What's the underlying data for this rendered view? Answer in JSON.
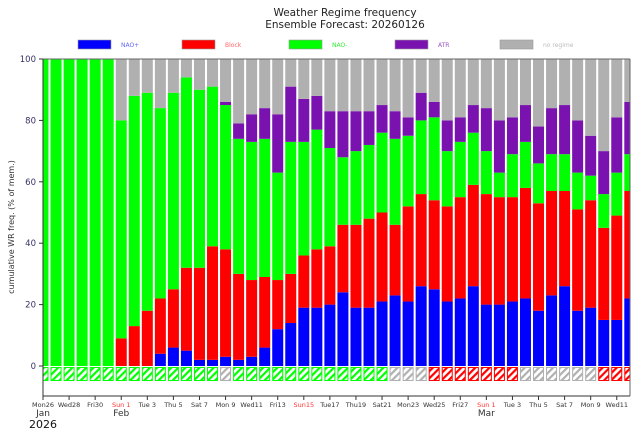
{
  "chart_data": {
    "type": "bar",
    "stacked": true,
    "title": "Weather Regime frequency",
    "subtitle": "Ensemble Forecast: 20260126",
    "ylabel": "cumulative WR freq. (% of mem.)",
    "xlabel": "",
    "ylim": [
      -8,
      100
    ],
    "yticks": [
      0,
      20,
      40,
      60,
      80,
      100
    ],
    "legend_position": "top",
    "legend": [
      {
        "name": "NAO+",
        "color": "#0000ff",
        "text_color": "#6666ff"
      },
      {
        "name": "Block",
        "color": "#ff0000",
        "text_color": "#ff6666"
      },
      {
        "name": "NAO-",
        "color": "#00ff00",
        "text_color": "#33ee33"
      },
      {
        "name": "ATR",
        "color": "#7a12b0",
        "text_color": "#9955cc"
      },
      {
        "name": "no regime",
        "color": "#b0b0b0",
        "text_color": "#bbbbbb"
      }
    ],
    "x": [
      "2026-01-26",
      "2026-01-27",
      "2026-01-28",
      "2026-01-29",
      "2026-01-30",
      "2026-01-31",
      "2026-02-01",
      "2026-02-02",
      "2026-02-03",
      "2026-02-04",
      "2026-02-05",
      "2026-02-06",
      "2026-02-07",
      "2026-02-08",
      "2026-02-09",
      "2026-02-10",
      "2026-02-11",
      "2026-02-12",
      "2026-02-13",
      "2026-02-14",
      "2026-02-15",
      "2026-02-16",
      "2026-02-17",
      "2026-02-18",
      "2026-02-19",
      "2026-02-20",
      "2026-02-21",
      "2026-02-22",
      "2026-02-23",
      "2026-02-24",
      "2026-02-25",
      "2026-02-26",
      "2026-02-27",
      "2026-02-28",
      "2026-03-01",
      "2026-03-02",
      "2026-03-03",
      "2026-03-04",
      "2026-03-05",
      "2026-03-06",
      "2026-03-07",
      "2026-03-08",
      "2026-03-09",
      "2026-03-10",
      "2026-03-11",
      "2026-03-12"
    ],
    "series": [
      {
        "name": "NAO+",
        "values": [
          0,
          0,
          0,
          0,
          0,
          0,
          0,
          0,
          0,
          4,
          6,
          5,
          2,
          2,
          3,
          2,
          3,
          6,
          12,
          14,
          19,
          19,
          20,
          24,
          19,
          19,
          21,
          23,
          21,
          26,
          25,
          21,
          22,
          26,
          20,
          20,
          21,
          22,
          18,
          23,
          26,
          18,
          19,
          15,
          15,
          22
        ]
      },
      {
        "name": "Block",
        "values": [
          0,
          0,
          0,
          0,
          0,
          0,
          9,
          13,
          18,
          18,
          19,
          27,
          30,
          37,
          35,
          28,
          25,
          23,
          16,
          16,
          17,
          19,
          19,
          22,
          27,
          29,
          29,
          23,
          31,
          30,
          29,
          31,
          33,
          33,
          36,
          35,
          34,
          36,
          35,
          34,
          31,
          33,
          35,
          30,
          34,
          35
        ]
      },
      {
        "name": "NAO-",
        "values": [
          100,
          100,
          100,
          100,
          100,
          100,
          71,
          75,
          71,
          62,
          64,
          62,
          58,
          52,
          47,
          44,
          45,
          45,
          35,
          43,
          37,
          39,
          32,
          22,
          24,
          24,
          26,
          28,
          23,
          24,
          27,
          18,
          18,
          17,
          14,
          8,
          14,
          15,
          13,
          12,
          12,
          12,
          8,
          11,
          14,
          12
        ]
      },
      {
        "name": "ATR",
        "values": [
          0,
          0,
          0,
          0,
          0,
          0,
          0,
          0,
          0,
          0,
          0,
          0,
          0,
          0,
          1,
          5,
          9,
          10,
          19,
          18,
          14,
          11,
          12,
          15,
          13,
          11,
          9,
          9,
          6,
          9,
          5,
          10,
          8,
          9,
          14,
          17,
          12,
          12,
          12,
          15,
          16,
          17,
          13,
          14,
          18,
          17
        ]
      },
      {
        "name": "no regime",
        "values": [
          0,
          0,
          0,
          0,
          0,
          0,
          20,
          12,
          11,
          16,
          11,
          6,
          10,
          9,
          14,
          21,
          18,
          16,
          18,
          9,
          13,
          12,
          17,
          17,
          17,
          17,
          15,
          17,
          19,
          11,
          14,
          20,
          19,
          15,
          16,
          20,
          19,
          15,
          22,
          16,
          15,
          20,
          25,
          30,
          19,
          14
        ]
      }
    ],
    "dominant_regime": [
      "NAO-",
      "NAO-",
      "NAO-",
      "NAO-",
      "NAO-",
      "NAO-",
      "NAO-",
      "NAO-",
      "NAO-",
      "NAO-",
      "NAO-",
      "NAO-",
      "NAO-",
      "NAO-",
      "no regime",
      "NAO-",
      "NAO-",
      "NAO-",
      "NAO-",
      "NAO-",
      "NAO-",
      "NAO-",
      "NAO-",
      "NAO-",
      "NAO-",
      "NAO-",
      "NAO-",
      "no regime",
      "no regime",
      "no regime",
      "Block",
      "Block",
      "Block",
      "Block",
      "Block",
      "Block",
      "Block",
      "no regime",
      "no regime",
      "no regime",
      "no regime",
      "no regime",
      "no regime",
      "Block",
      "Block",
      "Block"
    ],
    "xtick_labels": [
      {
        "day": 0,
        "label": "Mon26",
        "sunday": false
      },
      {
        "day": 2,
        "label": "Wed28",
        "sunday": false
      },
      {
        "day": 4,
        "label": "Fri30",
        "sunday": false
      },
      {
        "day": 6,
        "label": "Sun 1",
        "sunday": true
      },
      {
        "day": 8,
        "label": "Tue 3",
        "sunday": false
      },
      {
        "day": 10,
        "label": "Thu 5",
        "sunday": false
      },
      {
        "day": 12,
        "label": "Sat 7",
        "sunday": false
      },
      {
        "day": 14,
        "label": "Mon 9",
        "sunday": false
      },
      {
        "day": 16,
        "label": "Wed11",
        "sunday": false
      },
      {
        "day": 18,
        "label": "Fri13",
        "sunday": false
      },
      {
        "day": 20,
        "label": "Sun15",
        "sunday": true
      },
      {
        "day": 22,
        "label": "Tue17",
        "sunday": false
      },
      {
        "day": 24,
        "label": "Thu19",
        "sunday": false
      },
      {
        "day": 26,
        "label": "Sat21",
        "sunday": false
      },
      {
        "day": 28,
        "label": "Mon23",
        "sunday": false
      },
      {
        "day": 30,
        "label": "Wed25",
        "sunday": false
      },
      {
        "day": 32,
        "label": "Fri27",
        "sunday": false
      },
      {
        "day": 34,
        "label": "Sun 1",
        "sunday": true
      },
      {
        "day": 36,
        "label": "Tue 3",
        "sunday": false
      },
      {
        "day": 38,
        "label": "Thu 5",
        "sunday": false
      },
      {
        "day": 40,
        "label": "Sat 7",
        "sunday": false
      },
      {
        "day": 42,
        "label": "Mon 9",
        "sunday": false
      },
      {
        "day": 44,
        "label": "Wed11",
        "sunday": false
      }
    ],
    "month_labels": [
      {
        "day": 0,
        "label": "Jan"
      },
      {
        "day": 6,
        "label": "Feb"
      },
      {
        "day": 34,
        "label": "Mar"
      }
    ],
    "year_label": "2026"
  }
}
